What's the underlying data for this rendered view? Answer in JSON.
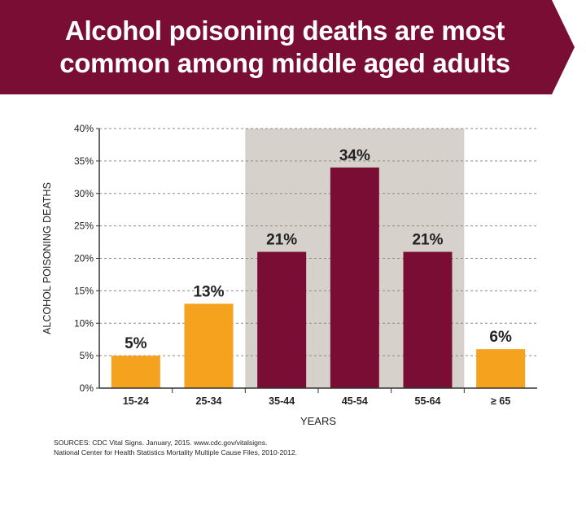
{
  "header": {
    "title_line1": "Alcohol poisoning deaths are most",
    "title_line2": "common among middle aged adults",
    "banner_color": "#7a0d33"
  },
  "chart_data": {
    "type": "bar",
    "categories": [
      "15-24",
      "25-34",
      "35-44",
      "45-54",
      "55-64",
      "≥ 65"
    ],
    "values": [
      5,
      13,
      21,
      34,
      21,
      6
    ],
    "data_labels": [
      "5%",
      "13%",
      "21%",
      "34%",
      "21%",
      "6%"
    ],
    "bar_colors": [
      "#f5a21f",
      "#f5a21f",
      "#7a0d33",
      "#7a0d33",
      "#7a0d33",
      "#f5a21f"
    ],
    "highlight_categories": [
      "35-44",
      "45-54",
      "55-64"
    ],
    "highlight_color": "#d6d1cb",
    "xlabel": "YEARS",
    "ylabel": "ALCOHOL POISONING DEATHS",
    "ylim": [
      0,
      40
    ],
    "yticks": [
      "0%",
      "5%",
      "10%",
      "15%",
      "20%",
      "25%",
      "30%",
      "35%",
      "40%"
    ],
    "grid": true
  },
  "footer": {
    "source_line1": "SOURCES: CDC Vital Signs. January, 2015. www.cdc.gov/vitalsigns.",
    "source_line2": "National Center for Health Statistics Mortality Multiple Cause Files, 2010-2012."
  }
}
